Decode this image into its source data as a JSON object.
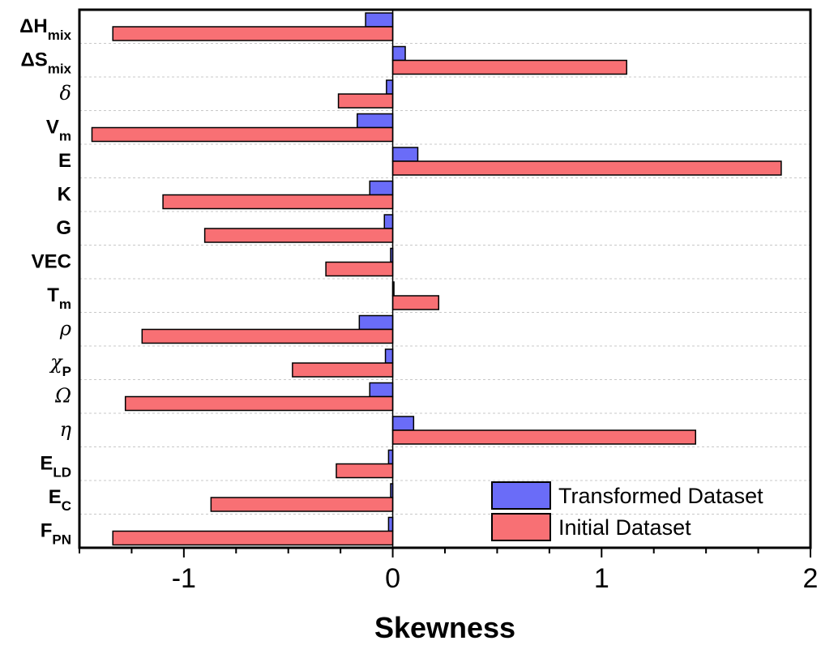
{
  "chart_data": {
    "type": "bar",
    "orientation": "horizontal",
    "title": "",
    "xlabel": "Skewness",
    "ylabel": "",
    "xlim": [
      -1.5,
      2.0
    ],
    "xticks": [
      "-1",
      "0",
      "1",
      "2"
    ],
    "xtick_values": [
      -1,
      0,
      1,
      2
    ],
    "grid": "horizontal dashed",
    "legend_position": "bottom-right",
    "categories": [
      {
        "main": "ΔH",
        "sub": "mix",
        "style": "bold"
      },
      {
        "main": "ΔS",
        "sub": "mix",
        "style": "bold"
      },
      {
        "main": "δ",
        "sub": "",
        "style": "italic"
      },
      {
        "main": "V",
        "sub": "m",
        "style": "bold"
      },
      {
        "main": "E",
        "sub": "",
        "style": "bold"
      },
      {
        "main": "K",
        "sub": "",
        "style": "bold"
      },
      {
        "main": "G",
        "sub": "",
        "style": "bold"
      },
      {
        "main": "VEC",
        "sub": "",
        "style": "bold"
      },
      {
        "main": "T",
        "sub": "m",
        "style": "bold"
      },
      {
        "main": "ρ",
        "sub": "",
        "style": "italic"
      },
      {
        "main": "χ",
        "sub": "P",
        "style": "italic"
      },
      {
        "main": "Ω",
        "sub": "",
        "style": "italic"
      },
      {
        "main": "η",
        "sub": "",
        "style": "italic"
      },
      {
        "main": "E",
        "sub": "LD",
        "style": "bold"
      },
      {
        "main": "E",
        "sub": "C",
        "style": "bold"
      },
      {
        "main": "F",
        "sub": "PN",
        "style": "bold"
      }
    ],
    "series": [
      {
        "name": "Transformed Dataset",
        "color": "#6a6cf8",
        "values": [
          -0.13,
          0.06,
          -0.03,
          -0.17,
          0.12,
          -0.11,
          -0.04,
          -0.01,
          0.0,
          -0.16,
          -0.035,
          -0.11,
          0.1,
          -0.02,
          -0.01,
          -0.02
        ]
      },
      {
        "name": "Initial Dataset",
        "color": "#f87074",
        "values": [
          -1.34,
          1.12,
          -0.26,
          -1.44,
          1.86,
          -1.1,
          -0.9,
          -0.32,
          0.22,
          -1.2,
          -0.48,
          -1.28,
          1.45,
          -0.27,
          -0.87,
          -1.34
        ]
      }
    ]
  }
}
